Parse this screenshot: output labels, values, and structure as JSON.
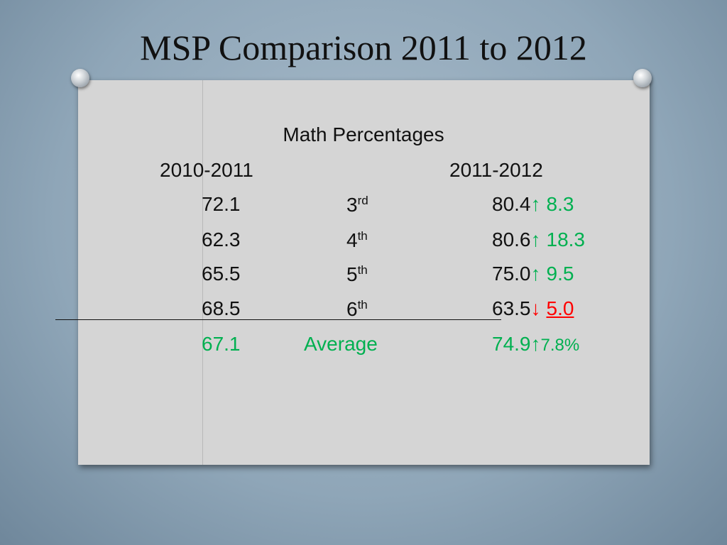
{
  "title": "MSP Comparison 2011 to 2012",
  "subtitle": "Math Percentages",
  "headers": [
    "2010-2011",
    "2011-2012"
  ],
  "rows": [
    {
      "value_2011": "72.1",
      "grade": "3",
      "grade_suffix": "rd",
      "value_2012": "80.4",
      "arrow": "↑",
      "change": "8.3",
      "color": "#00b050"
    },
    {
      "value_2011": "62.3",
      "grade": "4",
      "grade_suffix": "th",
      "value_2012": "80.6",
      "arrow": "↑",
      "change": "18.3",
      "color": "#00b050"
    },
    {
      "value_2011": "65.5",
      "grade": "5",
      "grade_suffix": "th",
      "value_2012": "75.0",
      "arrow": "↑",
      "change": "9.5",
      "color": "#00b050"
    },
    {
      "value_2011": "68.5",
      "grade": "6",
      "grade_suffix": "th",
      "value_2012": "63.5",
      "arrow": "↓",
      "change": "5.0",
      "color": "#ff0000"
    }
  ],
  "average": {
    "value_2011": "67.1",
    "label": "Average",
    "value_2012": "74.9",
    "arrow": "↑",
    "change": "7.8%",
    "color": "#00b050"
  }
}
